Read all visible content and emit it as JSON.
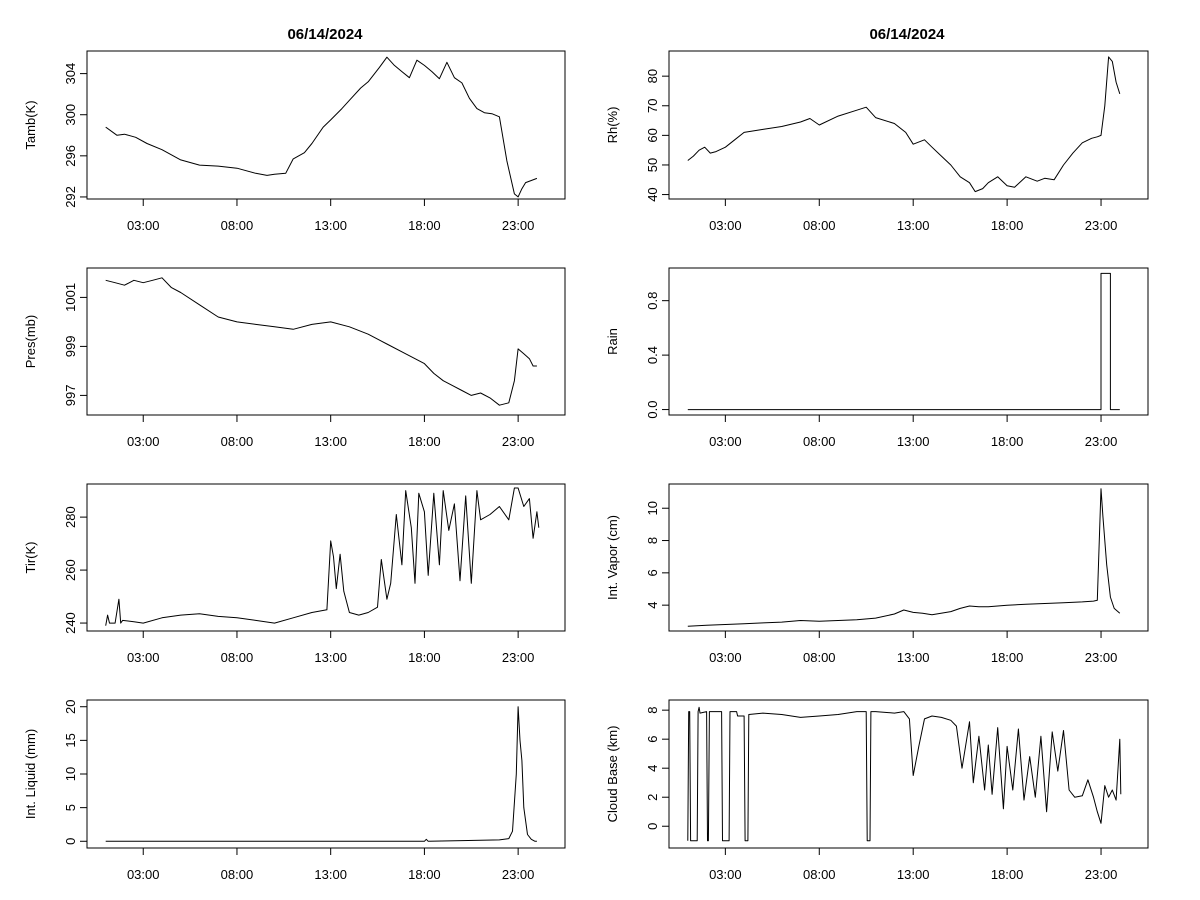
{
  "titles": {
    "left": "06/14/2024",
    "right": "06/14/2024"
  },
  "chart_data": [
    {
      "id": "tamb",
      "type": "line",
      "ylabel": "Tamb(K)",
      "xlabel": "",
      "xlim": [
        0,
        25.5
      ],
      "ylim": [
        291.8,
        306.2
      ],
      "yticks": [
        292,
        296,
        300,
        304
      ],
      "yticklabels": [
        "292",
        "296",
        "300",
        "304"
      ],
      "xticks": [
        3,
        8,
        13,
        18,
        23
      ],
      "xticklabels": [
        "03:00",
        "08:00",
        "13:00",
        "18:00",
        "23:00"
      ],
      "x": [
        1,
        1.6,
        2,
        2.6,
        3.2,
        4,
        5,
        6,
        7,
        8,
        9,
        9.6,
        10,
        10.6,
        11,
        11.6,
        12,
        12.6,
        13,
        13.6,
        14,
        14.6,
        15,
        15.6,
        16,
        16.4,
        16.8,
        17.2,
        17.6,
        18,
        18.4,
        18.8,
        19.2,
        19.6,
        20,
        20.4,
        20.8,
        21.2,
        21.6,
        22,
        22.4,
        22.8,
        23,
        23.2,
        23.4,
        23.7,
        24
      ],
      "y": [
        298.8,
        298,
        298.1,
        297.8,
        297.2,
        296.6,
        295.6,
        295.1,
        295,
        294.8,
        294.3,
        294.1,
        294.2,
        294.3,
        295.7,
        296.3,
        297.2,
        298.8,
        299.5,
        300.6,
        301.4,
        302.6,
        303.2,
        304.6,
        305.6,
        304.8,
        304.2,
        303.6,
        305.3,
        304.8,
        304.2,
        303.5,
        305.1,
        303.6,
        303.1,
        301.6,
        300.6,
        300.2,
        300.1,
        299.8,
        295.5,
        292.3,
        292.0,
        292.8,
        293.4,
        293.6,
        293.8
      ]
    },
    {
      "id": "rh",
      "type": "line",
      "ylabel": "Rh(%)",
      "xlabel": "",
      "xlim": [
        0,
        25.5
      ],
      "ylim": [
        38.5,
        88.5
      ],
      "yticks": [
        40,
        50,
        60,
        70,
        80
      ],
      "yticklabels": [
        "40",
        "50",
        "60",
        "70",
        "80"
      ],
      "xticks": [
        3,
        8,
        13,
        18,
        23
      ],
      "xticklabels": [
        "03:00",
        "08:00",
        "13:00",
        "18:00",
        "23:00"
      ],
      "x": [
        1,
        1.3,
        1.6,
        1.9,
        2.2,
        2.5,
        3,
        3.5,
        4,
        5,
        6,
        7,
        7.5,
        8,
        9,
        10,
        10.5,
        11,
        12,
        12.6,
        13,
        13.6,
        14,
        14.5,
        15,
        15.5,
        16,
        16.3,
        16.7,
        17,
        17.5,
        18,
        18.4,
        19,
        19.6,
        20,
        20.5,
        21,
        21.5,
        22,
        22.5,
        22.8,
        23,
        23.2,
        23.4,
        23.6,
        23.8,
        24
      ],
      "y": [
        51.5,
        53,
        55,
        56,
        54,
        54.5,
        56,
        58.5,
        61,
        62,
        63,
        64.5,
        65.7,
        63.5,
        66.5,
        68.5,
        69.5,
        66,
        64,
        61,
        57,
        58.5,
        56,
        53,
        50,
        46,
        44,
        41,
        42,
        44,
        46,
        43,
        42.5,
        46,
        44.5,
        45.5,
        45,
        50,
        54,
        57.5,
        59,
        59.5,
        60,
        70,
        86.5,
        85,
        78,
        74
      ]
    },
    {
      "id": "pres",
      "type": "line",
      "ylabel": "Pres(mb)",
      "xlabel": "",
      "xlim": [
        0,
        25.5
      ],
      "ylim": [
        996.2,
        1002.2
      ],
      "yticks": [
        997,
        999,
        1001
      ],
      "yticklabels": [
        "997",
        "999",
        "1001"
      ],
      "xticks": [
        3,
        8,
        13,
        18,
        23
      ],
      "xticklabels": [
        "03:00",
        "08:00",
        "13:00",
        "18:00",
        "23:00"
      ],
      "x": [
        1,
        1.5,
        2,
        2.5,
        3,
        3.5,
        4,
        4.5,
        5,
        6,
        7,
        8,
        9,
        10,
        11,
        12,
        13,
        14,
        15,
        16,
        17,
        18,
        18.5,
        19,
        19.5,
        20,
        20.5,
        21,
        21.5,
        22,
        22.5,
        22.8,
        23,
        23.3,
        23.6,
        23.8,
        24
      ],
      "y": [
        1001.7,
        1001.6,
        1001.5,
        1001.7,
        1001.6,
        1001.7,
        1001.8,
        1001.4,
        1001.2,
        1000.7,
        1000.2,
        1000.0,
        999.9,
        999.8,
        999.7,
        999.9,
        1000.0,
        999.8,
        999.5,
        999.1,
        998.7,
        998.3,
        997.9,
        997.6,
        997.4,
        997.2,
        997.0,
        997.1,
        996.9,
        996.6,
        996.7,
        997.6,
        998.9,
        998.7,
        998.5,
        998.2,
        998.2
      ]
    },
    {
      "id": "rain",
      "type": "line",
      "ylabel": "Rain",
      "xlabel": "",
      "xlim": [
        0,
        25.5
      ],
      "ylim": [
        -0.04,
        1.04
      ],
      "yticks": [
        0.0,
        0.4,
        0.8
      ],
      "yticklabels": [
        "0.0",
        "0.4",
        "0.8"
      ],
      "xticks": [
        3,
        8,
        13,
        18,
        23
      ],
      "xticklabels": [
        "03:00",
        "08:00",
        "13:00",
        "18:00",
        "23:00"
      ],
      "x": [
        1,
        22.8,
        23.0,
        23.0,
        23.5,
        23.5,
        24
      ],
      "y": [
        0,
        0,
        0,
        1,
        1,
        0,
        0
      ]
    },
    {
      "id": "tir",
      "type": "line",
      "ylabel": "Tir(K)",
      "xlabel": "",
      "xlim": [
        0,
        25.5
      ],
      "ylim": [
        237,
        292.5
      ],
      "yticks": [
        240,
        260,
        280
      ],
      "yticklabels": [
        "240",
        "260",
        "280"
      ],
      "x": [
        1,
        1.1,
        1.2,
        1.5,
        1.7,
        1.8,
        1.9,
        2.5,
        3,
        4,
        5,
        6,
        7,
        8,
        9,
        10,
        11,
        12,
        12.8,
        13,
        13.15,
        13.3,
        13.5,
        13.7,
        14,
        14.5,
        15,
        15.5,
        15.7,
        16,
        16.2,
        16.5,
        16.8,
        17,
        17.3,
        17.5,
        17.7,
        18,
        18.2,
        18.5,
        18.8,
        19,
        19.3,
        19.6,
        19.9,
        20.2,
        20.5,
        20.8,
        21,
        21.5,
        22,
        22.5,
        22.8,
        23,
        23.3,
        23.6,
        23.8,
        24,
        24.1
      ],
      "y": [
        239,
        243,
        240,
        240,
        249,
        240,
        241,
        240.5,
        240,
        242,
        243,
        243.5,
        242.5,
        242,
        241,
        240,
        242,
        244,
        245,
        271,
        265,
        253,
        266,
        252,
        244,
        243,
        244,
        246,
        264,
        249,
        255,
        281,
        262,
        290,
        276,
        255,
        289,
        282,
        258,
        289,
        262,
        290,
        275,
        285,
        256,
        288,
        255,
        290,
        279,
        281,
        284,
        279,
        291,
        291,
        284,
        287,
        272,
        282,
        276
      ],
      "xticks": [
        3,
        8,
        13,
        18,
        23
      ],
      "xticklabels": [
        "03:00",
        "08:00",
        "13:00",
        "18:00",
        "23:00"
      ]
    },
    {
      "id": "vapor",
      "type": "line",
      "ylabel": "Int. Vapor (cm)",
      "xlabel": "",
      "xlim": [
        0,
        25.5
      ],
      "ylim": [
        2.4,
        11.5
      ],
      "yticks": [
        4,
        6,
        8,
        10
      ],
      "yticklabels": [
        "4",
        "6",
        "8",
        "10"
      ],
      "xticks": [
        3,
        8,
        13,
        18,
        23
      ],
      "xticklabels": [
        "03:00",
        "08:00",
        "13:00",
        "18:00",
        "23:00"
      ],
      "x": [
        1,
        2,
        3,
        4,
        5,
        6,
        7,
        8,
        9,
        10,
        11,
        12,
        12.5,
        13,
        13.5,
        14,
        15,
        15.5,
        16,
        16.5,
        17,
        18,
        19,
        20,
        21,
        22,
        22.6,
        22.8,
        23,
        23.1,
        23.3,
        23.5,
        23.7,
        24
      ],
      "y": [
        2.7,
        2.75,
        2.8,
        2.85,
        2.9,
        2.95,
        3.05,
        3.0,
        3.05,
        3.1,
        3.2,
        3.45,
        3.7,
        3.55,
        3.5,
        3.4,
        3.6,
        3.8,
        3.95,
        3.9,
        3.9,
        4.0,
        4.05,
        4.1,
        4.15,
        4.2,
        4.25,
        4.3,
        11.2,
        9.5,
        6.5,
        4.5,
        3.8,
        3.5
      ]
    },
    {
      "id": "liquid",
      "type": "line",
      "ylabel": "Int. Liquid (mm)",
      "xlabel": "",
      "xlim": [
        0,
        25.5
      ],
      "ylim": [
        -1,
        21
      ],
      "yticks": [
        0,
        5,
        10,
        15,
        20
      ],
      "yticklabels": [
        "0",
        "5",
        "10",
        "15",
        "20"
      ],
      "xticks": [
        3,
        8,
        13,
        18,
        23
      ],
      "xticklabels": [
        "03:00",
        "08:00",
        "13:00",
        "18:00",
        "23:00"
      ],
      "x": [
        1,
        17,
        18,
        18.1,
        18.2,
        20,
        22,
        22.5,
        22.7,
        22.9,
        23.0,
        23.1,
        23.2,
        23.3,
        23.5,
        23.7,
        23.9,
        24
      ],
      "y": [
        0,
        0,
        0,
        0.3,
        0,
        0.1,
        0.2,
        0.4,
        1.5,
        10,
        20,
        15,
        12,
        5,
        1,
        0.3,
        0,
        0
      ]
    },
    {
      "id": "cloud",
      "type": "line",
      "ylabel": "Cloud Base (km)",
      "xlabel": "",
      "xlim": [
        0,
        25.5
      ],
      "ylim": [
        -1.5,
        8.7
      ],
      "yticks": [
        0,
        2,
        4,
        6,
        8
      ],
      "yticklabels": [
        "0",
        "2",
        "4",
        "6",
        "8"
      ],
      "xticks": [
        3,
        8,
        13,
        18,
        23
      ],
      "xticklabels": [
        "03:00",
        "08:00",
        "13:00",
        "18:00",
        "23:00"
      ],
      "x": [
        1,
        1.05,
        1.1,
        1.15,
        1.5,
        1.55,
        1.6,
        1.65,
        2,
        2.05,
        2.1,
        2.15,
        2.8,
        2.85,
        3.2,
        3.25,
        3.6,
        3.65,
        4,
        4.05,
        4.2,
        4.25,
        5,
        6,
        7,
        8,
        9,
        10,
        10.5,
        10.55,
        10.7,
        10.75,
        11,
        12,
        12.5,
        12.8,
        13,
        13.3,
        13.6,
        14,
        14.5,
        15,
        15.3,
        15.6,
        16,
        16.2,
        16.5,
        16.8,
        17,
        17.2,
        17.5,
        17.8,
        18,
        18.3,
        18.6,
        18.9,
        19.2,
        19.5,
        19.8,
        20.1,
        20.4,
        20.7,
        21,
        21.3,
        21.6,
        22,
        22.3,
        22.6,
        22.8,
        23,
        23.2,
        23.4,
        23.6,
        23.8,
        24,
        24.05
      ],
      "y": [
        -1,
        7.9,
        7.9,
        -1,
        -1,
        7.9,
        8.2,
        7.8,
        7.9,
        -1,
        -1,
        7.9,
        7.9,
        -1,
        -1,
        7.9,
        7.9,
        7.6,
        7.6,
        -1,
        -1,
        7.7,
        7.8,
        7.7,
        7.5,
        7.6,
        7.7,
        7.9,
        7.9,
        -1,
        -1,
        7.9,
        7.9,
        7.8,
        7.9,
        7.4,
        3.5,
        5.5,
        7.4,
        7.6,
        7.5,
        7.3,
        6.9,
        4.0,
        7.2,
        3.0,
        6.2,
        2.5,
        5.6,
        2.2,
        6.8,
        1.2,
        5.5,
        2.5,
        6.7,
        1.8,
        4.8,
        2.0,
        6.2,
        1.0,
        6.5,
        3.8,
        6.6,
        2.5,
        2.0,
        2.1,
        3.2,
        2.0,
        1.0,
        0.2,
        2.8,
        2.0,
        2.5,
        1.8,
        6.0,
        2.2
      ]
    }
  ]
}
